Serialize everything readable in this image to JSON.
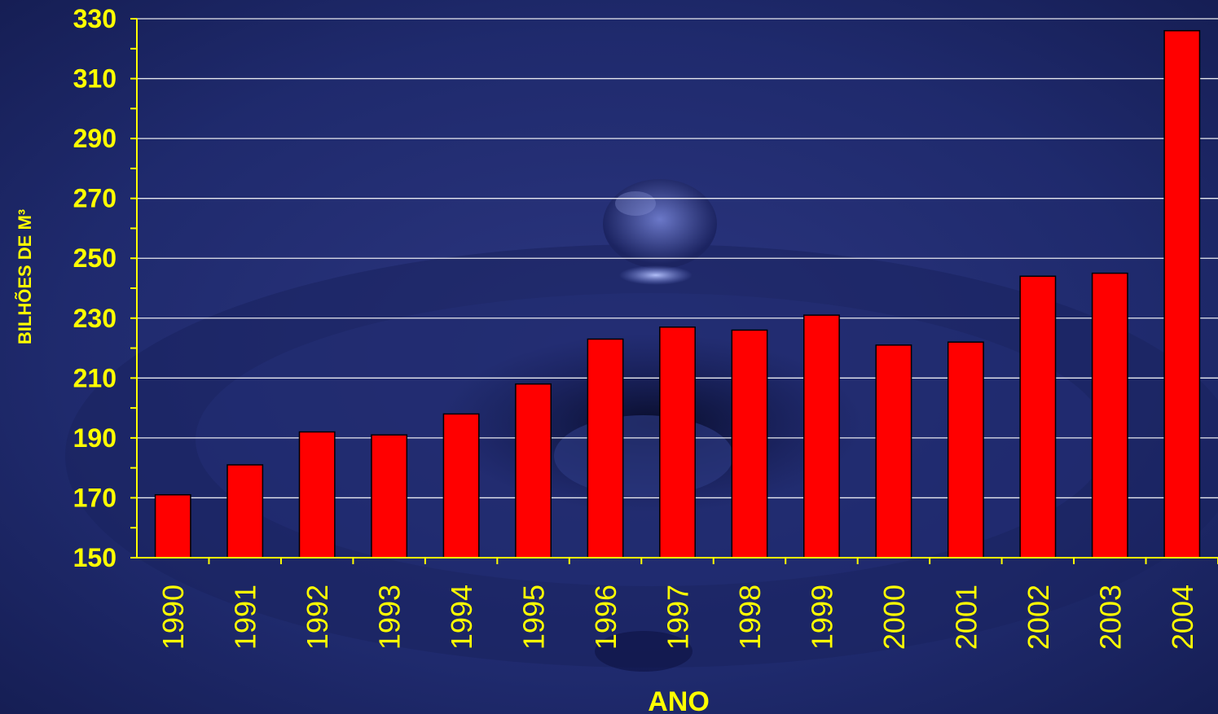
{
  "colors": {
    "background": "#1e2a6e",
    "bar": "#ff0000",
    "bar_outline": "#000000",
    "text": "#ffff00",
    "gridline": "#ffffff",
    "axis": "#ffff00"
  },
  "chart_data": {
    "type": "bar",
    "title": "",
    "xlabel": "ANO",
    "ylabel": "BILHÕES DE M³",
    "ylim": [
      150,
      330
    ],
    "yticks": [
      150,
      170,
      190,
      210,
      230,
      250,
      270,
      290,
      310,
      330
    ],
    "grid": true,
    "legend": "none",
    "categories": [
      "1990",
      "1991",
      "1992",
      "1993",
      "1994",
      "1995",
      "1996",
      "1997",
      "1998",
      "1999",
      "2000",
      "2001",
      "2002",
      "2003",
      "2004"
    ],
    "series": [
      {
        "values": [
          171,
          181,
          192,
          191,
          198,
          208,
          223,
          227,
          226,
          231,
          221,
          222,
          244,
          245,
          326
        ]
      }
    ]
  }
}
